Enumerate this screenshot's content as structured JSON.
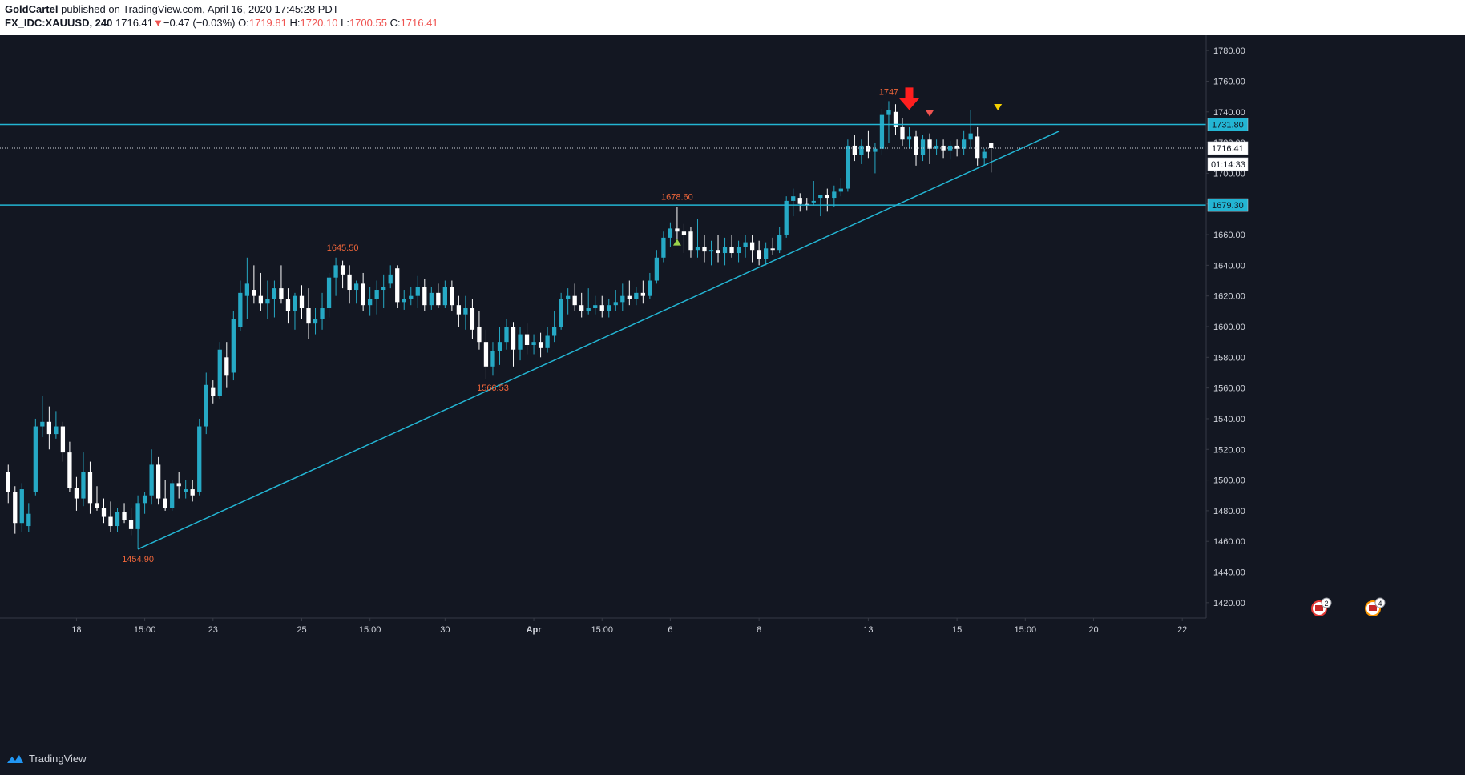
{
  "header": {
    "author": "GoldCartel",
    "published_text": "published on TradingView.com, April 16, 2020 17:45:28 PDT",
    "symbol": "FX_IDC:XAUUSD, 240",
    "last": "1716.41",
    "change": "−0.47 (−0.03%)",
    "o_label": "O:",
    "o": "1719.81",
    "h_label": "H:",
    "h": "1720.10",
    "l_label": "L:",
    "l": "1700.55",
    "c_label": "C:",
    "c": "1716.41"
  },
  "footer": {
    "brand": "TradingView",
    "brand_icon": "tradingview-logo-icon"
  },
  "colors": {
    "background": "#131722",
    "up": "#26a9c5",
    "down": "#ffffff",
    "line": "#23b5d3",
    "label": "#f0663a",
    "axis_text": "#d1d4dc",
    "signal_red": "#ff1f1f",
    "signal_yellow": "#f5d000",
    "signal_green": "#9bd34b"
  },
  "chart_data": {
    "type": "candlestick",
    "ylim": [
      1410,
      1790
    ],
    "yticks": [
      1420,
      1440,
      1460,
      1480,
      1500,
      1520,
      1540,
      1560,
      1580,
      1600,
      1620,
      1640,
      1660,
      1680,
      1700,
      1720,
      1740,
      1760,
      1780
    ],
    "xticks": [
      "18",
      "15:00",
      "23",
      "25",
      "15:00",
      "30",
      "Apr",
      "15:00",
      "6",
      "8",
      "13",
      "15",
      "15:00",
      "20",
      "22"
    ],
    "xtick_index": [
      10,
      20,
      30,
      43,
      53,
      64,
      77,
      87,
      97,
      110,
      126,
      139,
      149,
      159,
      172
    ],
    "bar_count": 176,
    "candles": [
      [
        1505,
        1510,
        1485,
        1492
      ],
      [
        1492,
        1496,
        1465,
        1472
      ],
      [
        1472,
        1498,
        1466,
        1494
      ],
      [
        1470,
        1485,
        1466,
        1478
      ],
      [
        1492,
        1540,
        1490,
        1535
      ],
      [
        1535,
        1555,
        1528,
        1538
      ],
      [
        1538,
        1548,
        1520,
        1530
      ],
      [
        1530,
        1545,
        1527,
        1535
      ],
      [
        1535,
        1538,
        1512,
        1518
      ],
      [
        1518,
        1525,
        1492,
        1495
      ],
      [
        1495,
        1502,
        1480,
        1488
      ],
      [
        1488,
        1518,
        1483,
        1505
      ],
      [
        1505,
        1512,
        1478,
        1485
      ],
      [
        1485,
        1496,
        1480,
        1482
      ],
      [
        1482,
        1488,
        1472,
        1476
      ],
      [
        1476,
        1486,
        1466,
        1470
      ],
      [
        1470,
        1482,
        1466,
        1479
      ],
      [
        1479,
        1485,
        1472,
        1474
      ],
      [
        1474,
        1482,
        1464,
        1468
      ],
      [
        1468,
        1490,
        1455,
        1485
      ],
      [
        1485,
        1492,
        1478,
        1490
      ],
      [
        1490,
        1520,
        1484,
        1510
      ],
      [
        1510,
        1515,
        1484,
        1488
      ],
      [
        1488,
        1500,
        1480,
        1482
      ],
      [
        1482,
        1500,
        1480,
        1498
      ],
      [
        1498,
        1505,
        1488,
        1496
      ],
      [
        1492,
        1500,
        1488,
        1494
      ],
      [
        1494,
        1500,
        1486,
        1490
      ],
      [
        1492,
        1540,
        1490,
        1535
      ],
      [
        1535,
        1570,
        1530,
        1562
      ],
      [
        1560,
        1565,
        1550,
        1555
      ],
      [
        1555,
        1590,
        1553,
        1585
      ],
      [
        1580,
        1590,
        1560,
        1568
      ],
      [
        1570,
        1610,
        1565,
        1605
      ],
      [
        1600,
        1630,
        1597,
        1622
      ],
      [
        1620,
        1645,
        1605,
        1628
      ],
      [
        1624,
        1640,
        1615,
        1620
      ],
      [
        1620,
        1635,
        1610,
        1615
      ],
      [
        1615,
        1630,
        1605,
        1618
      ],
      [
        1618,
        1630,
        1606,
        1625
      ],
      [
        1625,
        1640,
        1615,
        1618
      ],
      [
        1618,
        1625,
        1602,
        1610
      ],
      [
        1610,
        1622,
        1598,
        1620
      ],
      [
        1620,
        1627,
        1605,
        1612
      ],
      [
        1612,
        1625,
        1592,
        1602
      ],
      [
        1602,
        1612,
        1595,
        1605
      ],
      [
        1605,
        1622,
        1598,
        1612
      ],
      [
        1612,
        1635,
        1606,
        1632
      ],
      [
        1632,
        1645,
        1620,
        1640
      ],
      [
        1640,
        1643,
        1625,
        1634
      ],
      [
        1634,
        1640,
        1615,
        1624
      ],
      [
        1624,
        1630,
        1615,
        1628
      ],
      [
        1628,
        1635,
        1610,
        1614
      ],
      [
        1614,
        1626,
        1607,
        1618
      ],
      [
        1618,
        1630,
        1608,
        1624
      ],
      [
        1624,
        1634,
        1612,
        1626
      ],
      [
        1628,
        1640,
        1625,
        1634
      ],
      [
        1638,
        1640,
        1612,
        1616
      ],
      [
        1616,
        1624,
        1611,
        1618
      ],
      [
        1618,
        1626,
        1614,
        1620
      ],
      [
        1620,
        1633,
        1612,
        1626
      ],
      [
        1626,
        1631,
        1610,
        1614
      ],
      [
        1614,
        1626,
        1611,
        1622
      ],
      [
        1622,
        1628,
        1612,
        1614
      ],
      [
        1614,
        1630,
        1612,
        1626
      ],
      [
        1626,
        1630,
        1610,
        1614
      ],
      [
        1614,
        1620,
        1600,
        1608
      ],
      [
        1608,
        1620,
        1598,
        1612
      ],
      [
        1612,
        1618,
        1592,
        1598
      ],
      [
        1600,
        1610,
        1585,
        1590
      ],
      [
        1590,
        1598,
        1566,
        1574
      ],
      [
        1574,
        1590,
        1568,
        1584
      ],
      [
        1584,
        1600,
        1575,
        1590
      ],
      [
        1590,
        1605,
        1585,
        1600
      ],
      [
        1600,
        1603,
        1574,
        1585
      ],
      [
        1585,
        1600,
        1578,
        1595
      ],
      [
        1595,
        1602,
        1582,
        1588
      ],
      [
        1588,
        1595,
        1582,
        1590
      ],
      [
        1590,
        1596,
        1580,
        1586
      ],
      [
        1586,
        1600,
        1583,
        1594
      ],
      [
        1594,
        1610,
        1590,
        1600
      ],
      [
        1600,
        1622,
        1598,
        1618
      ],
      [
        1618,
        1625,
        1608,
        1620
      ],
      [
        1620,
        1628,
        1610,
        1614
      ],
      [
        1614,
        1622,
        1606,
        1610
      ],
      [
        1610,
        1625,
        1608,
        1612
      ],
      [
        1612,
        1620,
        1608,
        1614
      ],
      [
        1614,
        1620,
        1606,
        1610
      ],
      [
        1610,
        1618,
        1606,
        1614
      ],
      [
        1614,
        1624,
        1610,
        1616
      ],
      [
        1616,
        1628,
        1610,
        1620
      ],
      [
        1620,
        1630,
        1614,
        1618
      ],
      [
        1618,
        1626,
        1614,
        1622
      ],
      [
        1622,
        1630,
        1615,
        1620
      ],
      [
        1620,
        1635,
        1618,
        1630
      ],
      [
        1630,
        1650,
        1628,
        1645
      ],
      [
        1645,
        1662,
        1642,
        1658
      ],
      [
        1658,
        1668,
        1652,
        1664
      ],
      [
        1664,
        1678,
        1656,
        1662
      ],
      [
        1662,
        1667,
        1648,
        1660
      ],
      [
        1662,
        1665,
        1645,
        1650
      ],
      [
        1650,
        1670,
        1645,
        1652
      ],
      [
        1652,
        1660,
        1642,
        1649
      ],
      [
        1649,
        1656,
        1640,
        1650
      ],
      [
        1650,
        1660,
        1642,
        1648
      ],
      [
        1648,
        1658,
        1640,
        1652
      ],
      [
        1652,
        1660,
        1645,
        1648
      ],
      [
        1648,
        1656,
        1642,
        1652
      ],
      [
        1652,
        1660,
        1645,
        1655
      ],
      [
        1655,
        1660,
        1642,
        1650
      ],
      [
        1650,
        1656,
        1640,
        1644
      ],
      [
        1644,
        1655,
        1640,
        1651
      ],
      [
        1651,
        1658,
        1647,
        1650
      ],
      [
        1650,
        1665,
        1648,
        1660
      ],
      [
        1660,
        1685,
        1658,
        1682
      ],
      [
        1682,
        1690,
        1672,
        1685
      ],
      [
        1684,
        1687,
        1675,
        1680
      ],
      [
        1680,
        1684,
        1676,
        1679
      ],
      [
        1681,
        1695,
        1679,
        1682
      ],
      [
        1684,
        1686,
        1672,
        1686
      ],
      [
        1686,
        1690,
        1675,
        1684
      ],
      [
        1684,
        1692,
        1678,
        1688
      ],
      [
        1688,
        1697,
        1685,
        1690
      ],
      [
        1690,
        1722,
        1688,
        1718
      ],
      [
        1718,
        1725,
        1708,
        1712
      ],
      [
        1712,
        1722,
        1706,
        1718
      ],
      [
        1718,
        1728,
        1710,
        1714
      ],
      [
        1714,
        1720,
        1700,
        1716
      ],
      [
        1716,
        1742,
        1712,
        1738
      ],
      [
        1738,
        1747,
        1720,
        1741
      ],
      [
        1740,
        1745,
        1725,
        1730
      ],
      [
        1730,
        1736,
        1718,
        1722
      ],
      [
        1722,
        1730,
        1716,
        1724
      ],
      [
        1724,
        1728,
        1705,
        1712
      ],
      [
        1712,
        1725,
        1708,
        1722
      ],
      [
        1722,
        1726,
        1706,
        1716
      ],
      [
        1716,
        1722,
        1712,
        1718
      ],
      [
        1718,
        1722,
        1710,
        1715
      ],
      [
        1715,
        1721,
        1709,
        1718
      ],
      [
        1718,
        1722,
        1711,
        1716
      ],
      [
        1716,
        1728,
        1712,
        1722
      ],
      [
        1722,
        1741,
        1716,
        1726
      ],
      [
        1724,
        1730,
        1705,
        1710
      ],
      [
        1710,
        1716,
        1705,
        1714
      ],
      [
        1719.81,
        1720.1,
        1700.55,
        1716.41
      ]
    ],
    "horizontal_lines": [
      1731.8,
      1679.3
    ],
    "trendline": {
      "from": {
        "bar": 19,
        "value": 1454.9
      },
      "to": {
        "bar": 154,
        "value": 1727.5
      }
    },
    "current_price": 1716.41,
    "price_labels": [
      "1731.80",
      "1716.41",
      "1679.30"
    ],
    "countdown": "01:14:33",
    "annotations": [
      {
        "bar": 19,
        "value": 1454.9,
        "text": "1454.90",
        "pos": "below"
      },
      {
        "bar": 49,
        "value": 1645.5,
        "text": "1645.50",
        "pos": "above"
      },
      {
        "bar": 71,
        "value": 1566.53,
        "text": "1566.53",
        "pos": "below"
      },
      {
        "bar": 98,
        "value": 1678.6,
        "text": "1678.60",
        "pos": "above"
      },
      {
        "bar": 129,
        "value": 1747.0,
        "text": "1747",
        "pos": "above"
      }
    ],
    "signals": [
      {
        "bar": 132,
        "value": 1747.0,
        "type": "big-down-arrow",
        "color": "#ff1f1f"
      },
      {
        "bar": 135,
        "value": 1739.0,
        "type": "small-down-triangle",
        "color": "#ef5350"
      },
      {
        "bar": 145,
        "value": 1743.0,
        "type": "small-down-triangle",
        "color": "#f5d000"
      },
      {
        "bar": 98,
        "value": 1655.0,
        "type": "small-up-triangle",
        "color": "#9bd34b"
      }
    ],
    "event_badges": [
      {
        "text": "2",
        "color": "#e53935",
        "position": "near-right"
      },
      {
        "text": "4",
        "color": "#ff9800",
        "position": "far-right"
      }
    ]
  }
}
